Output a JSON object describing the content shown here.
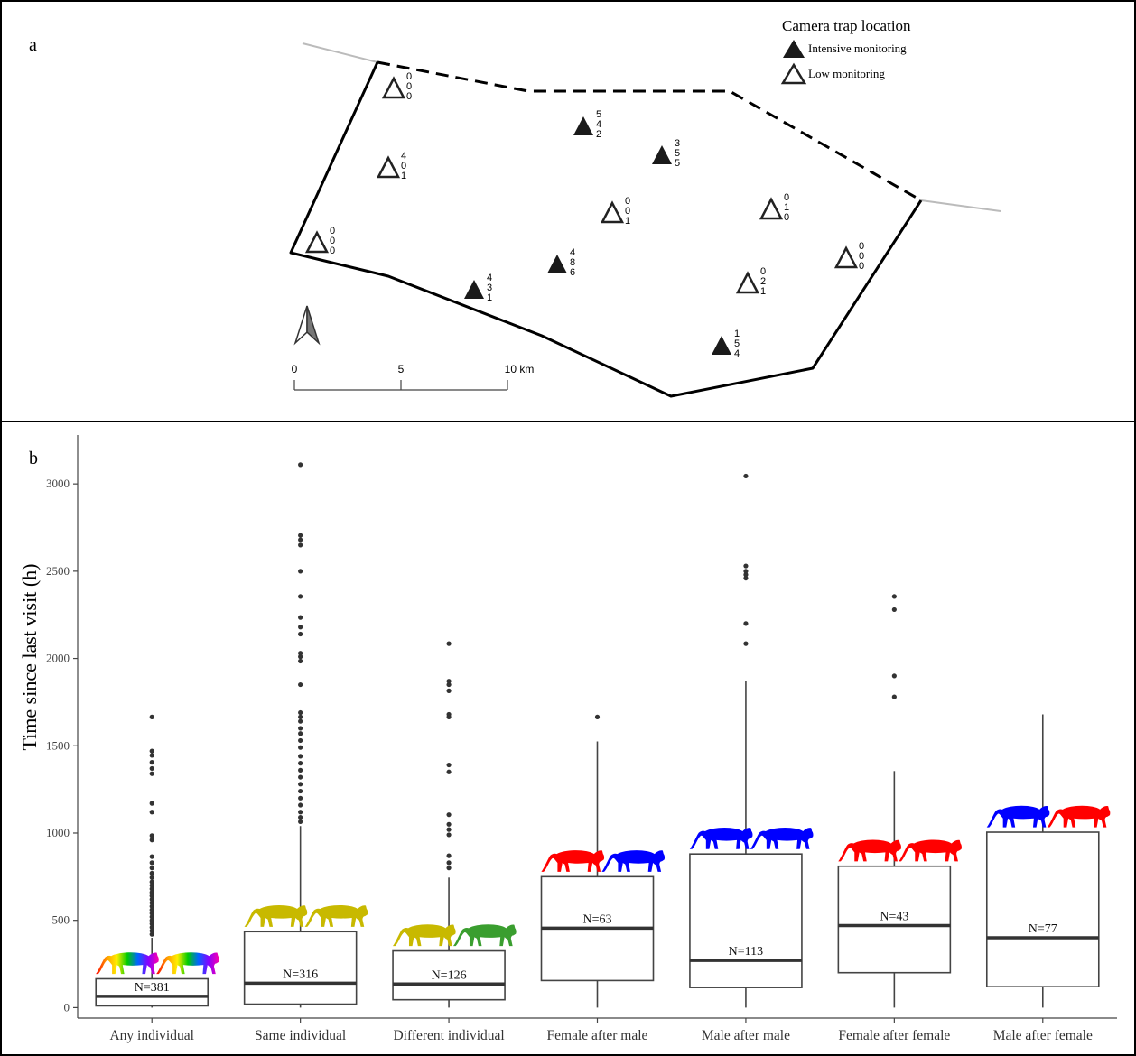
{
  "panel_a": {
    "label": "a",
    "legend": {
      "title": "Camera trap location",
      "intensive": "Intensive monitoring",
      "low": "Low monitoring"
    },
    "scale_bar": {
      "ticks": [
        "0",
        "5",
        "10 km"
      ]
    },
    "traps": [
      {
        "type": "low",
        "counts": [
          "0",
          "0",
          "0"
        ]
      },
      {
        "type": "low",
        "counts": [
          "4",
          "0",
          "1"
        ]
      },
      {
        "type": "low",
        "counts": [
          "0",
          "0",
          "0"
        ]
      },
      {
        "type": "intensive",
        "counts": [
          "4",
          "3",
          "1"
        ]
      },
      {
        "type": "intensive",
        "counts": [
          "4",
          "8",
          "6"
        ]
      },
      {
        "type": "low",
        "counts": [
          "0",
          "0",
          "1"
        ]
      },
      {
        "type": "intensive",
        "counts": [
          "5",
          "4",
          "2"
        ]
      },
      {
        "type": "intensive",
        "counts": [
          "3",
          "5",
          "5"
        ]
      },
      {
        "type": "low",
        "counts": [
          "0",
          "1",
          "0"
        ]
      },
      {
        "type": "low",
        "counts": [
          "0",
          "2",
          "1"
        ]
      },
      {
        "type": "low",
        "counts": [
          "0",
          "0",
          "0"
        ]
      },
      {
        "type": "intensive",
        "counts": [
          "1",
          "5",
          "4"
        ]
      }
    ],
    "colors": {
      "boundary": "#000000",
      "road": "#bbbbbb"
    }
  },
  "chart_data": {
    "type": "box",
    "panel_label": "b",
    "ylabel": "Time since last visit (h)",
    "xlabel": "",
    "ylim": [
      -60,
      3280
    ],
    "yticks": [
      0,
      500,
      1000,
      1500,
      2000,
      2500,
      3000
    ],
    "categories": [
      "Any individual",
      "Same individual",
      "Different individual",
      "Female after male",
      "Male after male",
      "Female after female",
      "Male after female"
    ],
    "boxes": [
      {
        "n_label": "N=381",
        "min": 0,
        "q1": 10,
        "median": 65,
        "q3": 165,
        "max": 400,
        "outliers": [
          1665,
          1470,
          1445,
          1405,
          1370,
          1340,
          1170,
          1120,
          985,
          960,
          865,
          830,
          800,
          770,
          745,
          720,
          700,
          680,
          660,
          640,
          620,
          600,
          580,
          560,
          540,
          520,
          500,
          480,
          460,
          440,
          420
        ],
        "icons": [
          "rainbow",
          "rainbow"
        ]
      },
      {
        "n_label": "N=316",
        "min": 0,
        "q1": 20,
        "median": 140,
        "q3": 435,
        "max": 1040,
        "outliers": [
          3110,
          2705,
          2680,
          2650,
          2500,
          2355,
          2235,
          2180,
          2140,
          2030,
          2010,
          1985,
          1850,
          1690,
          1665,
          1640,
          1600,
          1570,
          1530,
          1490,
          1440,
          1400,
          1360,
          1320,
          1280,
          1240,
          1200,
          1160,
          1120,
          1090,
          1065
        ],
        "icons": [
          "#c8b900",
          "#c8b900"
        ]
      },
      {
        "n_label": "N=126",
        "min": 0,
        "q1": 45,
        "median": 135,
        "q3": 325,
        "max": 745,
        "outliers": [
          2085,
          1870,
          1850,
          1815,
          1680,
          1665,
          1390,
          1350,
          1105,
          1050,
          1020,
          990,
          870,
          830,
          800
        ],
        "icons": [
          "#c8b900",
          "#3a9e2f"
        ]
      },
      {
        "n_label": "N=63",
        "min": 0,
        "q1": 155,
        "median": 455,
        "q3": 750,
        "max": 1525,
        "outliers": [
          1665
        ],
        "icons": [
          "#ff0000",
          "#0000ff"
        ]
      },
      {
        "n_label": "N=113",
        "min": 0,
        "q1": 115,
        "median": 270,
        "q3": 880,
        "max": 1870,
        "outliers": [
          3045,
          2530,
          2500,
          2480,
          2460,
          2200,
          2085
        ],
        "icons": [
          "#0000ff",
          "#0000ff"
        ]
      },
      {
        "n_label": "N=43",
        "min": 0,
        "q1": 200,
        "median": 470,
        "q3": 810,
        "max": 1355,
        "outliers": [
          2355,
          2280,
          1900,
          1780
        ],
        "icons": [
          "#ff0000",
          "#ff0000"
        ]
      },
      {
        "n_label": "N=77",
        "min": 0,
        "q1": 120,
        "median": 400,
        "q3": 1005,
        "max": 1680,
        "outliers": [],
        "icons": [
          "#0000ff",
          "#ff0000"
        ]
      }
    ]
  }
}
